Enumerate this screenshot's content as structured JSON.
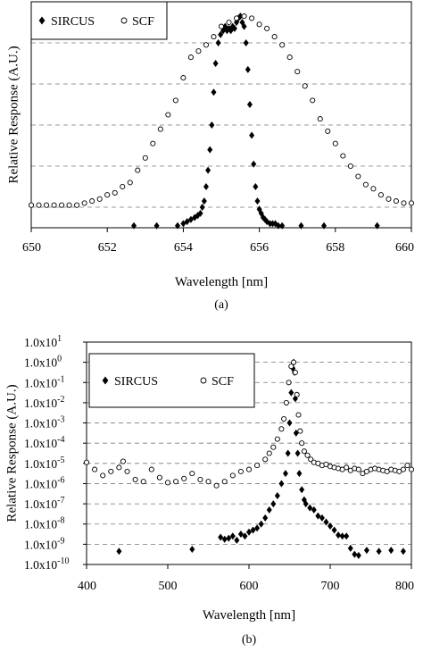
{
  "chart_data": [
    {
      "type": "scatter",
      "panel_label": "(a)",
      "xlabel": "Wavelength [nm]",
      "ylabel": "Relative Response (A.U.)",
      "xlim": [
        650,
        660
      ],
      "ylim": [
        0,
        1.1
      ],
      "x_ticks": [
        "650",
        "652",
        "654",
        "656",
        "658",
        "660"
      ],
      "x_tick_values": [
        650,
        652,
        654,
        656,
        658,
        660
      ],
      "grid": "horizontal dashed",
      "legend_placement": "top-left",
      "series": [
        {
          "name": "SIRCUS",
          "marker": "diamond-filled",
          "x": [
            652.7,
            653.3,
            653.85,
            654.0,
            654.1,
            654.2,
            654.3,
            654.38,
            654.45,
            654.5,
            654.55,
            654.6,
            654.65,
            654.7,
            654.75,
            654.8,
            654.85,
            654.92,
            654.98,
            655.05,
            655.1,
            655.15,
            655.2,
            655.25,
            655.3,
            655.35,
            655.4,
            655.45,
            655.5,
            655.55,
            655.6,
            655.65,
            655.7,
            655.75,
            655.8,
            655.85,
            655.9,
            655.95,
            656.0,
            656.05,
            656.1,
            656.15,
            656.2,
            656.28,
            656.35,
            656.42,
            656.5,
            656.6,
            657.1,
            657.7,
            659.1
          ],
          "y": [
            0.01,
            0.01,
            0.01,
            0.02,
            0.03,
            0.04,
            0.05,
            0.06,
            0.07,
            0.1,
            0.13,
            0.2,
            0.28,
            0.38,
            0.5,
            0.66,
            0.8,
            0.9,
            0.94,
            0.96,
            0.98,
            0.96,
            0.97,
            0.96,
            0.98,
            0.97,
            1.0,
            1.02,
            1.03,
            1.0,
            0.98,
            0.9,
            0.77,
            0.6,
            0.45,
            0.31,
            0.2,
            0.13,
            0.09,
            0.07,
            0.05,
            0.04,
            0.03,
            0.02,
            0.02,
            0.02,
            0.01,
            0.01,
            0.01,
            0.01,
            0.01
          ]
        },
        {
          "name": "SCF",
          "marker": "circle-open",
          "x": [
            650.0,
            650.2,
            650.4,
            650.6,
            650.8,
            651.0,
            651.2,
            651.4,
            651.6,
            651.8,
            652.0,
            652.2,
            652.4,
            652.6,
            652.8,
            653.0,
            653.2,
            653.4,
            653.6,
            653.8,
            654.0,
            654.2,
            654.4,
            654.6,
            654.8,
            655.0,
            655.2,
            655.4,
            655.6,
            655.8,
            656.0,
            656.2,
            656.4,
            656.6,
            656.8,
            657.0,
            657.2,
            657.4,
            657.6,
            657.8,
            658.0,
            658.2,
            658.4,
            658.6,
            658.8,
            659.0,
            659.2,
            659.4,
            659.6,
            659.8,
            660.0
          ],
          "y": [
            0.11,
            0.11,
            0.11,
            0.11,
            0.11,
            0.11,
            0.11,
            0.12,
            0.13,
            0.14,
            0.16,
            0.17,
            0.2,
            0.22,
            0.28,
            0.34,
            0.41,
            0.48,
            0.55,
            0.62,
            0.73,
            0.83,
            0.86,
            0.89,
            0.93,
            0.98,
            1.0,
            1.02,
            1.03,
            1.02,
            0.99,
            0.97,
            0.93,
            0.89,
            0.83,
            0.76,
            0.69,
            0.62,
            0.53,
            0.47,
            0.41,
            0.35,
            0.3,
            0.25,
            0.21,
            0.19,
            0.16,
            0.14,
            0.13,
            0.12,
            0.12
          ]
        }
      ]
    },
    {
      "type": "scatter",
      "panel_label": "(b)",
      "xlabel": "Wavelength [nm]",
      "ylabel": "Relative Response (A.U.)",
      "xlim": [
        400,
        800
      ],
      "ylim_log10": [
        -10,
        1
      ],
      "log_scale": "y",
      "x_ticks": [
        "400",
        "500",
        "600",
        "700",
        "800"
      ],
      "x_tick_values": [
        400,
        500,
        600,
        700,
        800
      ],
      "y_ticks": [
        {
          "mant": "1.0x10",
          "exp": "1"
        },
        {
          "mant": "1.0x10",
          "exp": "0"
        },
        {
          "mant": "1.0x10",
          "exp": "-1"
        },
        {
          "mant": "1.0x10",
          "exp": "-2"
        },
        {
          "mant": "1.0x10",
          "exp": "-3"
        },
        {
          "mant": "1.0x10",
          "exp": "-4"
        },
        {
          "mant": "1.0x10",
          "exp": "-5"
        },
        {
          "mant": "1.0x10",
          "exp": "-6"
        },
        {
          "mant": "1.0x10",
          "exp": "-7"
        },
        {
          "mant": "1.0x10",
          "exp": "-8"
        },
        {
          "mant": "1.0x10",
          "exp": "-9"
        },
        {
          "mant": "1.0x10",
          "exp": "-10"
        }
      ],
      "y_tick_log_values": [
        1,
        0,
        -1,
        -2,
        -3,
        -4,
        -5,
        -6,
        -7,
        -8,
        -9,
        -10
      ],
      "grid": "horizontal dashed",
      "legend_placement": "top-left",
      "series": [
        {
          "name": "SIRCUS",
          "marker": "diamond-filled",
          "x": [
            440,
            530,
            565,
            570,
            575,
            580,
            585,
            590,
            595,
            600,
            605,
            610,
            615,
            620,
            625,
            630,
            635,
            640,
            645,
            648,
            650,
            652,
            654,
            655,
            656,
            657,
            658,
            660,
            662,
            665,
            668,
            670,
            675,
            680,
            685,
            690,
            695,
            700,
            705,
            710,
            715,
            720,
            725,
            730,
            735,
            745,
            760,
            775,
            790
          ],
          "y_log10": [
            -9.35,
            -9.25,
            -8.65,
            -8.75,
            -8.7,
            -8.6,
            -8.8,
            -8.5,
            -8.6,
            -8.4,
            -8.3,
            -8.2,
            -8.0,
            -7.7,
            -7.3,
            -7.0,
            -6.6,
            -6.0,
            -5.5,
            -4.5,
            -3.0,
            -1.5,
            -0.3,
            0.0,
            -0.5,
            -1.8,
            -3.5,
            -4.5,
            -5.5,
            -6.3,
            -6.8,
            -7.0,
            -7.2,
            -7.3,
            -7.6,
            -7.7,
            -7.9,
            -8.1,
            -8.3,
            -8.55,
            -8.6,
            -8.6,
            -9.2,
            -9.5,
            -9.55,
            -9.3,
            -9.35,
            -9.3,
            -9.35
          ]
        },
        {
          "name": "SCF",
          "marker": "circle-open",
          "x": [
            400,
            410,
            420,
            430,
            440,
            445,
            450,
            460,
            470,
            480,
            490,
            500,
            510,
            520,
            530,
            540,
            550,
            560,
            570,
            580,
            590,
            600,
            610,
            620,
            625,
            630,
            635,
            640,
            643,
            646,
            649,
            652,
            655,
            657,
            659,
            661,
            663,
            665,
            668,
            672,
            676,
            680,
            685,
            690,
            695,
            700,
            705,
            710,
            715,
            720,
            725,
            730,
            735,
            740,
            745,
            750,
            755,
            760,
            765,
            770,
            775,
            780,
            785,
            790,
            795,
            800
          ],
          "y_log10": [
            -4.95,
            -5.3,
            -5.6,
            -5.4,
            -5.2,
            -4.9,
            -5.4,
            -5.8,
            -5.9,
            -5.3,
            -5.7,
            -5.95,
            -5.9,
            -5.75,
            -5.5,
            -5.8,
            -5.9,
            -6.1,
            -5.9,
            -5.6,
            -5.4,
            -5.3,
            -5.1,
            -4.8,
            -4.5,
            -4.2,
            -3.8,
            -3.3,
            -2.8,
            -2.0,
            -1.0,
            -0.2,
            0.0,
            -0.5,
            -1.6,
            -2.6,
            -3.4,
            -4.0,
            -4.4,
            -4.6,
            -4.8,
            -4.95,
            -5.0,
            -5.1,
            -5.05,
            -5.15,
            -5.2,
            -5.25,
            -5.3,
            -5.2,
            -5.35,
            -5.25,
            -5.3,
            -5.5,
            -5.4,
            -5.3,
            -5.25,
            -5.3,
            -5.35,
            -5.4,
            -5.3,
            -5.35,
            -5.4,
            -5.3,
            -5.1,
            -5.3
          ]
        }
      ]
    }
  ]
}
